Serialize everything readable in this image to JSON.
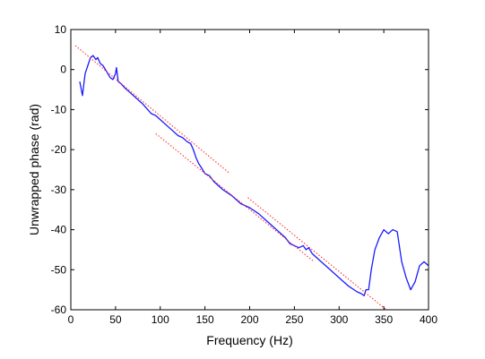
{
  "chart_data": {
    "type": "line",
    "title": "",
    "xlabel": "Frequency (Hz)",
    "ylabel": "Unwrapped phase (rad)",
    "xlim": [
      0,
      400
    ],
    "ylim": [
      -60,
      10
    ],
    "x_ticks": [
      0,
      50,
      100,
      150,
      200,
      250,
      300,
      350,
      400
    ],
    "y_ticks": [
      10,
      0,
      -10,
      -20,
      -30,
      -40,
      -50,
      -60
    ],
    "grid": false,
    "legend": "none",
    "series": [
      {
        "color": "#1a1aff",
        "style": "solid",
        "x": [
          10,
          13,
          16,
          19,
          22,
          25,
          28,
          30,
          33,
          36,
          40,
          44,
          47,
          50,
          51,
          53,
          56,
          60,
          65,
          70,
          80,
          90,
          95,
          100,
          110,
          120,
          125,
          130,
          134,
          137,
          140,
          143,
          146,
          150,
          155,
          160,
          170,
          180,
          190,
          200,
          210,
          220,
          230,
          240,
          245,
          250,
          255,
          260,
          263,
          266,
          270,
          280,
          290,
          300,
          310,
          320,
          325,
          328,
          330,
          333,
          336,
          340,
          345,
          350,
          355,
          360,
          365,
          370,
          375,
          380,
          385,
          390,
          395,
          400
        ],
        "values": [
          -3,
          -6.5,
          -1,
          1,
          3,
          3.5,
          2.5,
          3,
          1.5,
          1,
          -0.5,
          -2,
          -2.5,
          -1,
          0.5,
          -3,
          -3.5,
          -4.5,
          -5.5,
          -6.5,
          -8.5,
          -11,
          -11.5,
          -12.5,
          -14.5,
          -16.5,
          -17,
          -18,
          -18.5,
          -20,
          -22,
          -23.5,
          -24.5,
          -26,
          -26.5,
          -28,
          -30,
          -31.5,
          -33.5,
          -34.5,
          -36,
          -38,
          -40,
          -42,
          -43.5,
          -44,
          -44.5,
          -44,
          -45,
          -44.5,
          -46,
          -48,
          -50,
          -52,
          -54,
          -55.5,
          -56,
          -56.5,
          -55,
          -55,
          -50,
          -45,
          -42,
          -40,
          -41,
          -40,
          -40.5,
          -48,
          -52,
          -55,
          -53,
          -49,
          -48,
          -49
        ]
      },
      {
        "color": "#ff2020",
        "style": "dotted",
        "x": [
          5,
          178
        ],
        "values": [
          6,
          -26
        ]
      },
      {
        "color": "#ff2020",
        "style": "dotted",
        "x": [
          95,
          272
        ],
        "values": [
          -16,
          -48
        ]
      },
      {
        "color": "#ff2020",
        "style": "dotted",
        "x": [
          198,
          375
        ],
        "values": [
          -32,
          -64
        ]
      }
    ]
  }
}
